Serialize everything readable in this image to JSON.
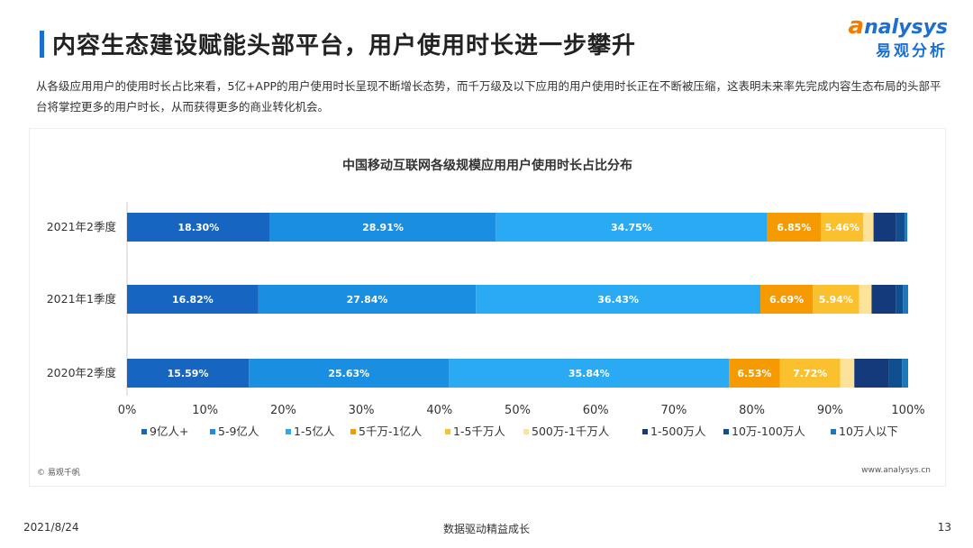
{
  "header": {
    "title": "内容生态建设赋能头部平台，用户使用时长进一步攀升",
    "logo_en_lead": "a",
    "logo_en_rest": "nalysys",
    "logo_cn": "易观分析"
  },
  "intro": "从各级应用用户的使用时长占比来看，5亿+APP的用户使用时长呈现不断增长态势，而千万级及以下应用的用户使用时长正在不断被压缩，这表明未来率先完成内容生态布局的头部平台将掌控更多的用户时长，从而获得更多的商业转化机会。",
  "card": {
    "copyright": "© 易观千帆",
    "site": "www.analysys.cn"
  },
  "footer": {
    "date": "2021/8/24",
    "slogan": "数据驱动精益成长",
    "page": "13"
  },
  "colors": {
    "accent": "#1a6fd0",
    "logo_orange": "#f07c00",
    "series": [
      "#1665c0",
      "#1a8ee0",
      "#2aaaf2",
      "#f59a00",
      "#fbc02d",
      "#fde29a",
      "#153a7c",
      "#0f4f8f",
      "#1a78bb"
    ]
  },
  "chart_data": {
    "type": "bar",
    "orientation": "horizontal",
    "stacked": true,
    "title": "中国移动互联网各级规模应用用户使用时长占比分布",
    "categories": [
      "2021年2季度",
      "2021年1季度",
      "2020年2季度"
    ],
    "xlim": [
      0,
      100
    ],
    "x_ticks": [
      "0%",
      "10%",
      "20%",
      "30%",
      "40%",
      "50%",
      "60%",
      "70%",
      "80%",
      "90%",
      "100%"
    ],
    "legend_position": "bottom",
    "series": [
      {
        "name": "9亿人+",
        "values": [
          18.3,
          16.82,
          15.59
        ]
      },
      {
        "name": "5-9亿人",
        "values": [
          28.91,
          27.84,
          25.63
        ]
      },
      {
        "name": "1-5亿人",
        "values": [
          34.75,
          36.43,
          35.84
        ]
      },
      {
        "name": "5千万-1亿人",
        "values": [
          6.85,
          6.69,
          6.53
        ]
      },
      {
        "name": "1-5千万人",
        "values": [
          5.46,
          5.94,
          7.72
        ]
      },
      {
        "name": "500万-1千万人",
        "values": [
          1.3,
          1.6,
          1.8
        ]
      },
      {
        "name": "1-500万人",
        "values": [
          2.9,
          3.1,
          4.4
        ]
      },
      {
        "name": "10万-100万人",
        "values": [
          1.1,
          0.9,
          1.7
        ]
      },
      {
        "name": "10万人以下",
        "values": [
          0.33,
          0.68,
          0.79
        ]
      }
    ],
    "labels": [
      [
        "18.30%",
        "16.82%",
        "15.59%"
      ],
      [
        "28.91%",
        "27.84%",
        "25.63%"
      ],
      [
        "34.75%",
        "36.43%",
        "35.84%"
      ],
      [
        "6.85%",
        "6.69%",
        "6.53%"
      ],
      [
        "5.46%",
        "5.94%",
        "7.72%"
      ],
      null,
      null,
      null,
      null
    ]
  }
}
